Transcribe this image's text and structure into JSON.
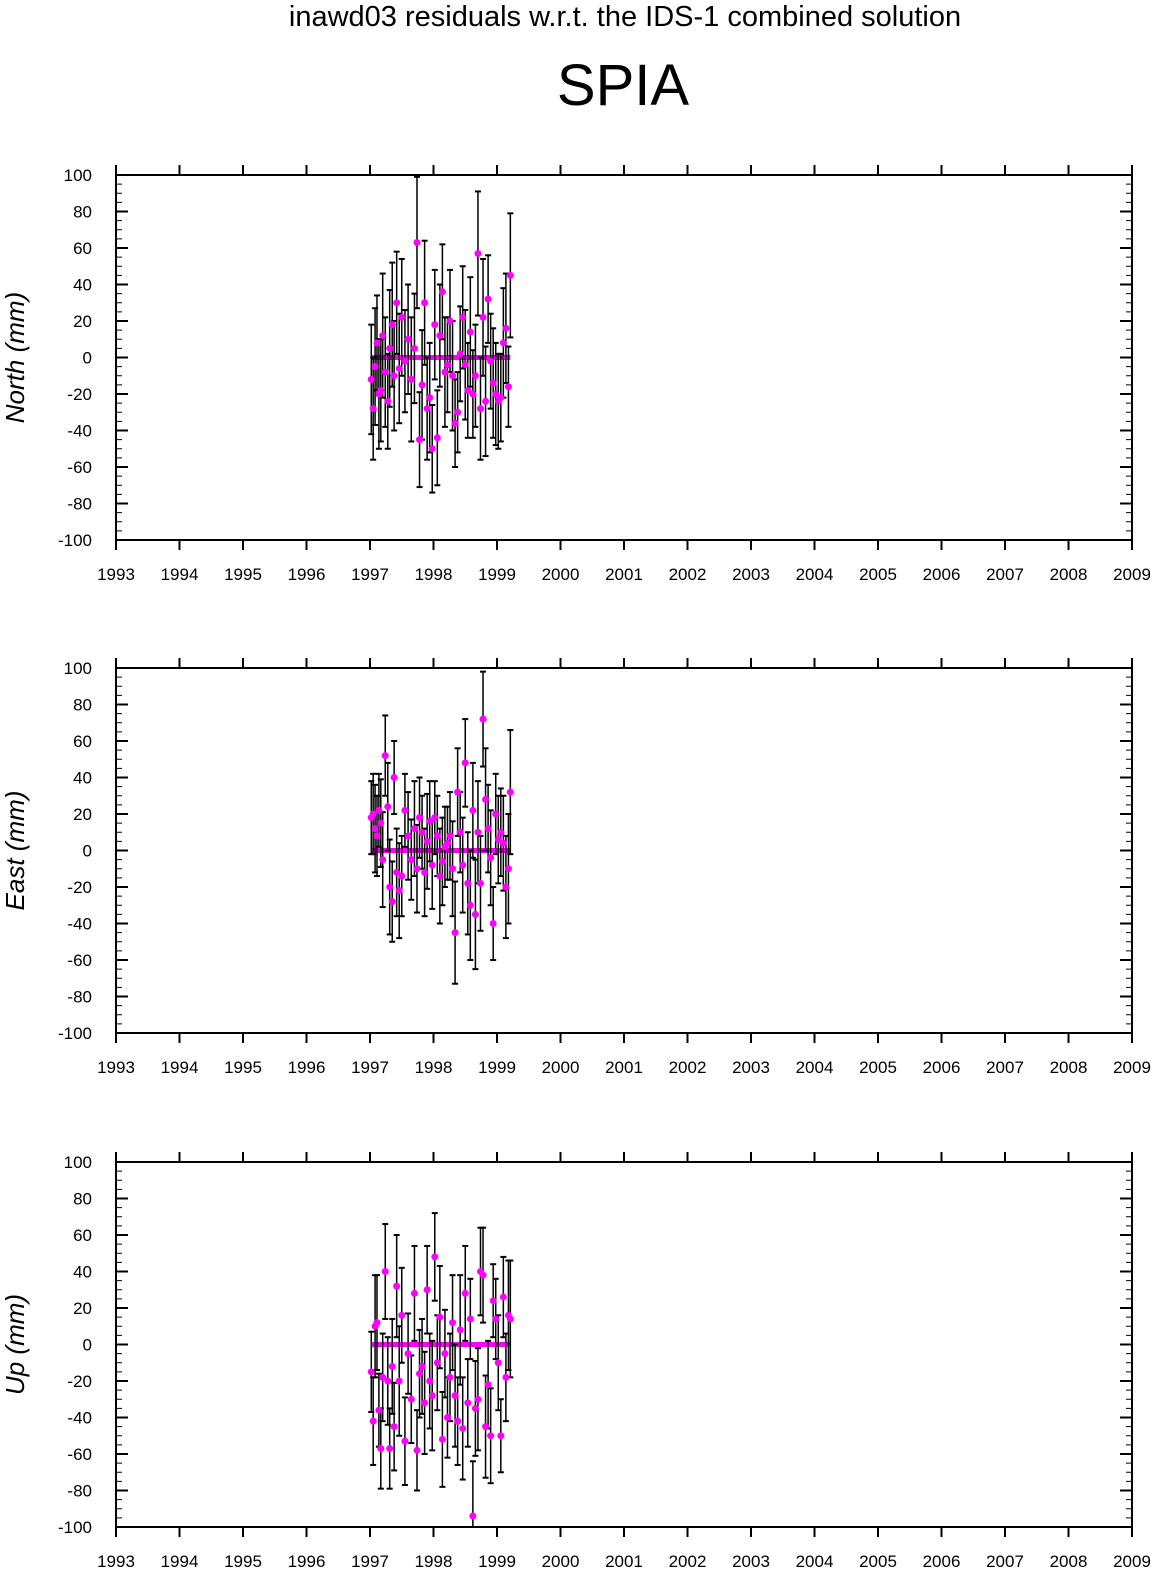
{
  "title": "inawd03 residuals w.r.t. the IDS-1 combined solution",
  "station": "SPIA",
  "colors": {
    "point": "#ff00ff",
    "errorbar": "#000000",
    "axis": "#000000"
  },
  "chart_data": [
    {
      "type": "scatter",
      "ylabel": "North (mm)",
      "xlim": [
        1993,
        2009
      ],
      "ylim": [
        -100,
        100
      ],
      "xticks": [
        "1993",
        "1994",
        "1995",
        "1996",
        "1997",
        "1998",
        "1999",
        "2000",
        "2001",
        "2002",
        "2003",
        "2004",
        "2005",
        "2006",
        "2007",
        "2008",
        "2009"
      ],
      "yticks": [
        "-100",
        "-80",
        "-60",
        "-40",
        "-20",
        "0",
        "20",
        "40",
        "60",
        "80",
        "100"
      ],
      "series": [
        {
          "x": [
            1997.02,
            1997.05,
            1997.08,
            1997.11,
            1997.14,
            1997.17,
            1997.2,
            1997.24,
            1997.28,
            1997.31,
            1997.35,
            1997.38,
            1997.42,
            1997.46,
            1997.5,
            1997.55,
            1997.6,
            1997.65,
            1997.7,
            1997.74,
            1997.78,
            1997.82,
            1997.86,
            1997.9,
            1997.94,
            1997.98,
            1998.02,
            1998.06,
            1998.1,
            1998.14,
            1998.18,
            1998.22,
            1998.26,
            1998.3,
            1998.34,
            1998.38,
            1998.42,
            1998.46,
            1998.5,
            1998.54,
            1998.58,
            1998.62,
            1998.66,
            1998.7,
            1998.74,
            1998.78,
            1998.82,
            1998.86,
            1998.9,
            1998.94,
            1998.98,
            1999.02,
            1999.06,
            1999.1,
            1999.14,
            1999.18,
            1999.21
          ],
          "y": [
            -12,
            -28,
            -5,
            8,
            -20,
            -18,
            12,
            -8,
            -24,
            5,
            18,
            -10,
            30,
            -6,
            22,
            -2,
            10,
            -12,
            5,
            63,
            -45,
            -15,
            30,
            -28,
            -22,
            -50,
            18,
            -44,
            12,
            36,
            -8,
            -4,
            20,
            -10,
            -36,
            -30,
            2,
            22,
            -4,
            -18,
            14,
            -20,
            -10,
            57,
            -28,
            22,
            -24,
            32,
            -2,
            -14,
            -20,
            -24,
            -22,
            8,
            16,
            -16,
            45
          ],
          "err": [
            30,
            28,
            32,
            26,
            30,
            28,
            34,
            30,
            26,
            32,
            34,
            30,
            28,
            30,
            32,
            28,
            30,
            34,
            30,
            36,
            26,
            30,
            34,
            28,
            30,
            24,
            30,
            26,
            28,
            26,
            30,
            26,
            28,
            30,
            24,
            22,
            26,
            28,
            30,
            26,
            30,
            24,
            28,
            34,
            28,
            32,
            30,
            24,
            26,
            30,
            28,
            26,
            24,
            30,
            30,
            22,
            34
          ]
        }
      ]
    },
    {
      "type": "scatter",
      "ylabel": "East (mm)",
      "xlim": [
        1993,
        2009
      ],
      "ylim": [
        -100,
        100
      ],
      "xticks": [
        "1993",
        "1994",
        "1995",
        "1996",
        "1997",
        "1998",
        "1999",
        "2000",
        "2001",
        "2002",
        "2003",
        "2004",
        "2005",
        "2006",
        "2007",
        "2008",
        "2009"
      ],
      "yticks": [
        "-100",
        "-80",
        "-60",
        "-40",
        "-20",
        "0",
        "20",
        "40",
        "60",
        "80",
        "100"
      ],
      "series": [
        {
          "x": [
            1997.02,
            1997.05,
            1997.08,
            1997.11,
            1997.14,
            1997.17,
            1997.2,
            1997.24,
            1997.28,
            1997.31,
            1997.35,
            1997.38,
            1997.42,
            1997.46,
            1997.5,
            1997.55,
            1997.6,
            1997.65,
            1997.7,
            1997.74,
            1997.78,
            1997.82,
            1997.86,
            1997.9,
            1997.94,
            1997.98,
            1998.02,
            1998.06,
            1998.1,
            1998.14,
            1998.18,
            1998.22,
            1998.26,
            1998.3,
            1998.34,
            1998.38,
            1998.42,
            1998.46,
            1998.5,
            1998.54,
            1998.58,
            1998.62,
            1998.66,
            1998.7,
            1998.74,
            1998.78,
            1998.82,
            1998.86,
            1998.9,
            1998.94,
            1998.98,
            1999.02,
            1999.06,
            1999.1,
            1999.14,
            1999.18,
            1999.21
          ],
          "y": [
            18,
            20,
            12,
            8,
            22,
            15,
            -5,
            52,
            24,
            -20,
            -28,
            40,
            -12,
            -22,
            -14,
            22,
            8,
            -5,
            12,
            -10,
            18,
            10,
            -12,
            5,
            16,
            -8,
            18,
            8,
            -14,
            -6,
            2,
            4,
            8,
            -10,
            -45,
            32,
            10,
            -8,
            48,
            -18,
            -30,
            22,
            -35,
            10,
            -18,
            72,
            28,
            12,
            -4,
            -40,
            20,
            6,
            10,
            4,
            -20,
            -10,
            32
          ],
          "err": [
            20,
            22,
            24,
            22,
            20,
            24,
            26,
            22,
            24,
            26,
            22,
            20,
            24,
            26,
            22,
            20,
            24,
            22,
            26,
            24,
            22,
            20,
            24,
            26,
            22,
            24,
            20,
            22,
            26,
            24,
            22,
            20,
            24,
            26,
            28,
            24,
            22,
            26,
            24,
            28,
            30,
            26,
            30,
            28,
            26,
            26,
            28,
            24,
            26,
            20,
            22,
            24,
            24,
            26,
            28,
            30,
            34
          ]
        }
      ]
    },
    {
      "type": "scatter",
      "ylabel": "Up (mm)",
      "xlim": [
        1993,
        2009
      ],
      "ylim": [
        -100,
        100
      ],
      "xticks": [
        "1993",
        "1994",
        "1995",
        "1996",
        "1997",
        "1998",
        "1999",
        "2000",
        "2001",
        "2002",
        "2003",
        "2004",
        "2005",
        "2006",
        "2007",
        "2008",
        "2009"
      ],
      "yticks": [
        "-100",
        "-80",
        "-60",
        "-40",
        "-20",
        "0",
        "20",
        "40",
        "60",
        "80",
        "100"
      ],
      "series": [
        {
          "x": [
            1997.02,
            1997.05,
            1997.08,
            1997.11,
            1997.14,
            1997.17,
            1997.2,
            1997.24,
            1997.28,
            1997.31,
            1997.35,
            1997.38,
            1997.42,
            1997.46,
            1997.5,
            1997.55,
            1997.6,
            1997.65,
            1997.7,
            1997.74,
            1997.78,
            1997.82,
            1997.86,
            1997.9,
            1997.94,
            1997.98,
            1998.02,
            1998.06,
            1998.1,
            1998.14,
            1998.18,
            1998.22,
            1998.26,
            1998.3,
            1998.34,
            1998.38,
            1998.42,
            1998.46,
            1998.5,
            1998.54,
            1998.58,
            1998.62,
            1998.66,
            1998.7,
            1998.74,
            1998.78,
            1998.82,
            1998.86,
            1998.9,
            1998.94,
            1998.98,
            1999.02,
            1999.06,
            1999.1,
            1999.14,
            1999.18,
            1999.21
          ],
          "y": [
            -15,
            -42,
            10,
            12,
            -36,
            -57,
            -18,
            40,
            -20,
            -57,
            -12,
            -45,
            32,
            -20,
            16,
            -53,
            -5,
            -30,
            28,
            -58,
            -16,
            -12,
            -32,
            30,
            -20,
            -28,
            48,
            -10,
            15,
            -52,
            -5,
            -40,
            -18,
            12,
            -28,
            -42,
            8,
            -46,
            28,
            -32,
            14,
            -94,
            -35,
            -30,
            40,
            38,
            -45,
            -22,
            -50,
            24,
            14,
            -10,
            -50,
            26,
            -18,
            16,
            14
          ],
          "err": [
            22,
            24,
            28,
            26,
            20,
            22,
            24,
            26,
            24,
            22,
            26,
            24,
            28,
            30,
            26,
            24,
            22,
            24,
            26,
            22,
            24,
            26,
            28,
            24,
            26,
            30,
            24,
            26,
            28,
            26,
            24,
            22,
            24,
            26,
            28,
            24,
            30,
            28,
            26,
            24,
            22,
            30,
            26,
            28,
            24,
            26,
            28,
            24,
            26,
            20,
            22,
            26,
            20,
            22,
            24,
            30,
            32
          ]
        }
      ]
    }
  ]
}
